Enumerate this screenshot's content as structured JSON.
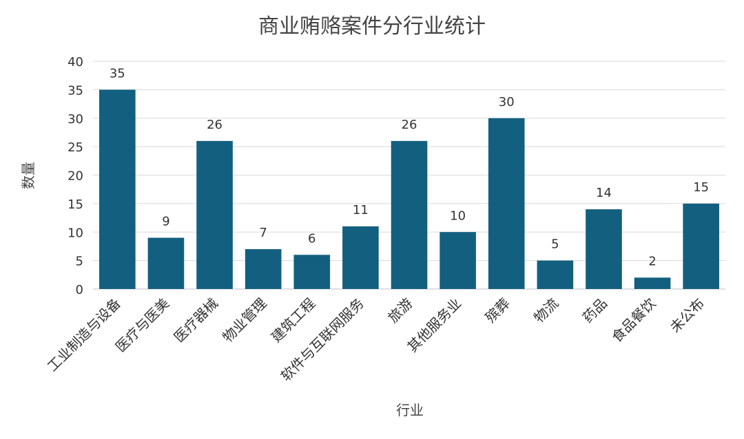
{
  "chart_data": {
    "type": "bar",
    "title": "商业贿赂案件分行业统计",
    "xlabel": "行业",
    "ylabel": "数量",
    "categories": [
      "工业制造与设备",
      "医疗与医美",
      "医疗器械",
      "物业管理",
      "建筑工程",
      "软件与互联网服务",
      "旅游",
      "其他服务业",
      "殡葬",
      "物流",
      "药品",
      "食品餐饮",
      "未公布"
    ],
    "values": [
      35,
      9,
      26,
      7,
      6,
      11,
      26,
      10,
      30,
      5,
      14,
      2,
      15
    ],
    "ylim": [
      0,
      40
    ],
    "yticks": [
      0,
      5,
      10,
      15,
      20,
      25,
      30,
      35,
      40
    ],
    "grid": true,
    "legend": "none",
    "data_labels": true,
    "bar_color": "#135f80",
    "grid_color": "#d9d9d9",
    "text_color": "#333333"
  }
}
